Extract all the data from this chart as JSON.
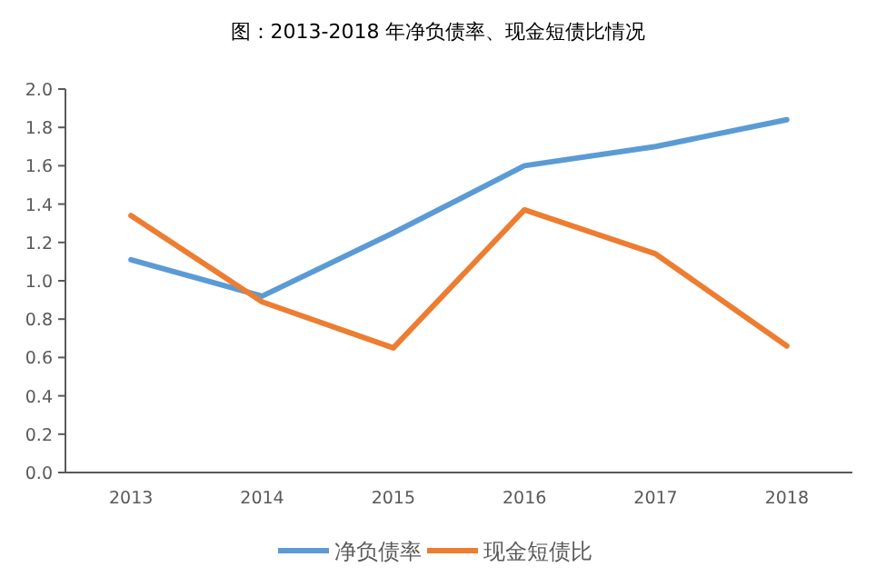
{
  "chart_data": {
    "type": "line",
    "title": "图：2013-2018 年净负债率、现金短债比情况",
    "categories": [
      "2013",
      "2014",
      "2015",
      "2016",
      "2017",
      "2018"
    ],
    "series": [
      {
        "name": "净负债率",
        "color": "#5b9bd5",
        "values": [
          1.11,
          0.92,
          1.25,
          1.6,
          1.7,
          1.84
        ]
      },
      {
        "name": "现金短债比",
        "color": "#ed7d31",
        "values": [
          1.34,
          0.89,
          0.65,
          1.37,
          1.14,
          0.66
        ]
      }
    ],
    "ylim": [
      0,
      2.0
    ],
    "yticks": [
      {
        "value": 0,
        "label": "0.0"
      },
      {
        "value": 0.2,
        "label": "0.2"
      },
      {
        "value": 0.4,
        "label": "0.4"
      },
      {
        "value": 0.6,
        "label": "0.6"
      },
      {
        "value": 0.8,
        "label": "0.8"
      },
      {
        "value": 1.0,
        "label": "1.0"
      },
      {
        "value": 1.2,
        "label": "1.2"
      },
      {
        "value": 1.4,
        "label": "1.4"
      },
      {
        "value": 1.6,
        "label": "1.6"
      },
      {
        "value": 1.8,
        "label": "1.8"
      },
      {
        "value": 2.0,
        "label": "2.0"
      }
    ],
    "grid": false,
    "legend": "bottom",
    "marker": "none",
    "line_style": "solid"
  }
}
